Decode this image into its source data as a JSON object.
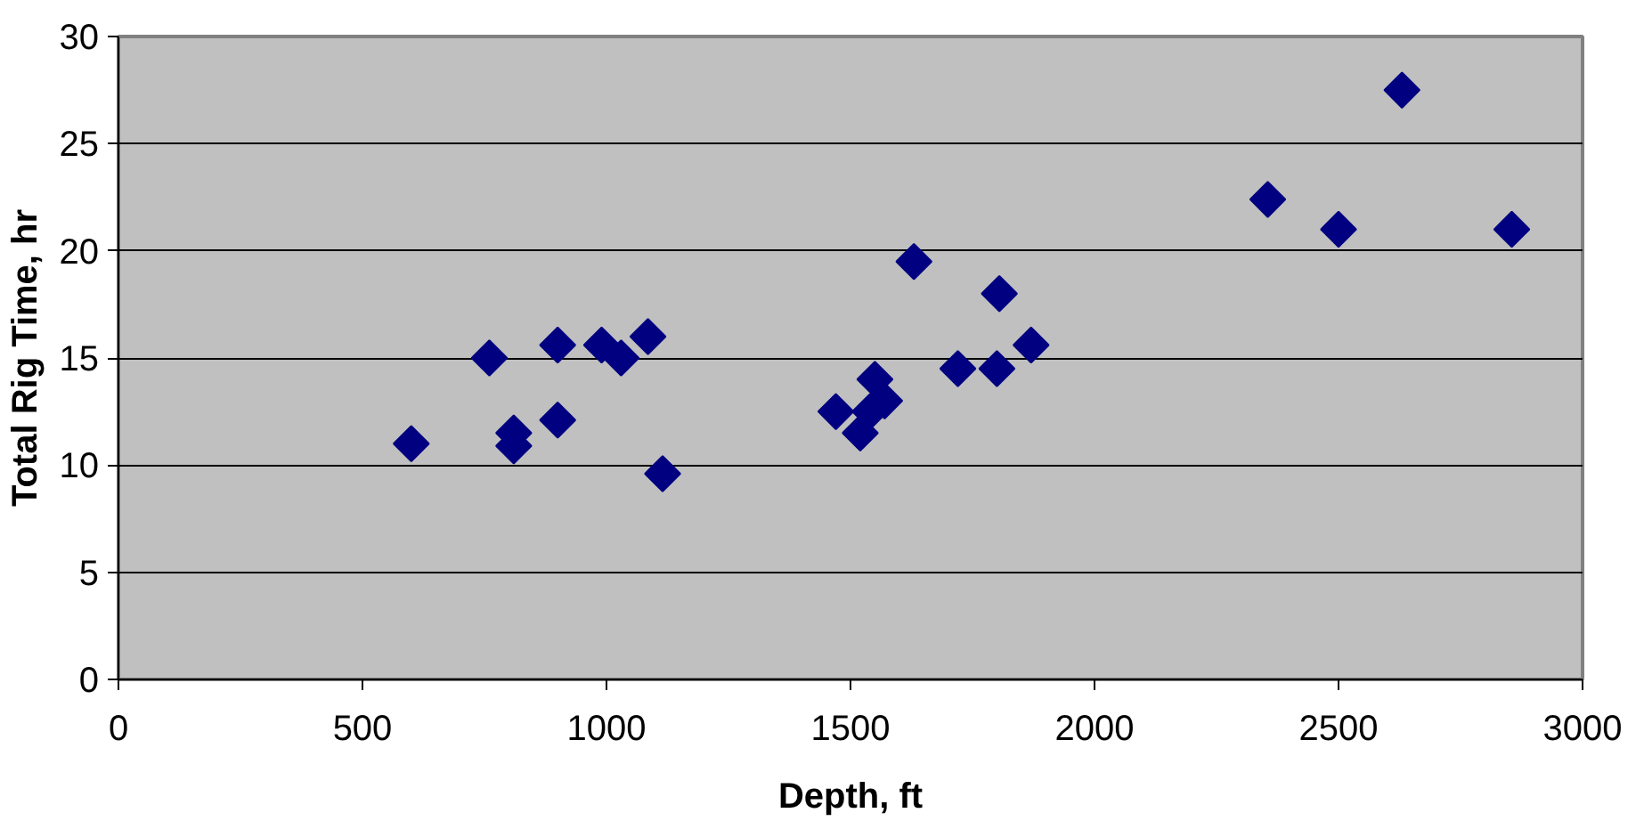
{
  "chart_data": {
    "type": "scatter",
    "xlabel": "Depth, ft",
    "ylabel": "Total Rig Time, hr",
    "x": [
      600,
      760,
      810,
      810,
      900,
      900,
      990,
      1030,
      1085,
      1115,
      1470,
      1520,
      1540,
      1550,
      1570,
      1630,
      1720,
      1805,
      1800,
      1870,
      2355,
      2500,
      2630,
      2855
    ],
    "series": [
      {
        "color": "#000080",
        "values": [
          11,
          15,
          11.5,
          10.9,
          12.1,
          15.6,
          15.6,
          15.0,
          16.0,
          9.6,
          12.5,
          11.5,
          12.5,
          14.0,
          13.0,
          19.5,
          14.5,
          18.0,
          14.5,
          15.6,
          22.4,
          21.0,
          27.5,
          21.0
        ]
      }
    ],
    "xlim": [
      0,
      3000
    ],
    "ylim": [
      0,
      30
    ],
    "xticks": [
      0,
      500,
      1000,
      1500,
      2000,
      2500,
      3000
    ],
    "yticks": [
      0,
      5,
      10,
      15,
      20,
      25,
      30
    ],
    "grid": "y",
    "marker": "diamond"
  }
}
